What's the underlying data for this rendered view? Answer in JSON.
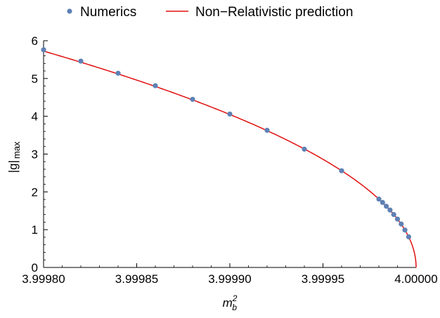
{
  "chart_data": {
    "type": "scatter",
    "title": "",
    "xlabel": {
      "base": "m",
      "sup": "2",
      "sub": "b"
    },
    "ylabel": {
      "main": "|g|",
      "sub": "max"
    },
    "xlim": [
      3.9998,
      4.0
    ],
    "ylim": [
      0,
      6
    ],
    "x_ticks": [
      "3.99980",
      "3.99985",
      "3.99990",
      "3.99995",
      "4.00000"
    ],
    "y_ticks": [
      "0",
      "1",
      "2",
      "3",
      "4",
      "5",
      "6"
    ],
    "grid": false,
    "legend_position": "top",
    "series": [
      {
        "name": "Numerics",
        "kind": "points",
        "color": "#5e81b5",
        "points": [
          [
            3.9998,
            5.76
          ],
          [
            3.99982,
            5.46
          ],
          [
            3.99984,
            5.14
          ],
          [
            3.99986,
            4.81
          ],
          [
            3.99988,
            4.45
          ],
          [
            3.9999,
            4.06
          ],
          [
            3.99992,
            3.63
          ],
          [
            3.99994,
            3.13
          ],
          [
            3.99996,
            2.56
          ],
          [
            3.99998,
            1.81
          ],
          [
            3.999982,
            1.72
          ],
          [
            3.999984,
            1.62
          ],
          [
            3.999986,
            1.52
          ],
          [
            3.999988,
            1.4
          ],
          [
            3.99999,
            1.28
          ],
          [
            3.999992,
            1.15
          ],
          [
            3.999994,
            0.99
          ],
          [
            3.999996,
            0.81
          ]
        ]
      },
      {
        "name": "Non−Relativistic prediction",
        "kind": "curve",
        "color": "#e01010",
        "x_end": 4.0,
        "coefficient": 404.8,
        "exponent": 0.5
      }
    ]
  }
}
